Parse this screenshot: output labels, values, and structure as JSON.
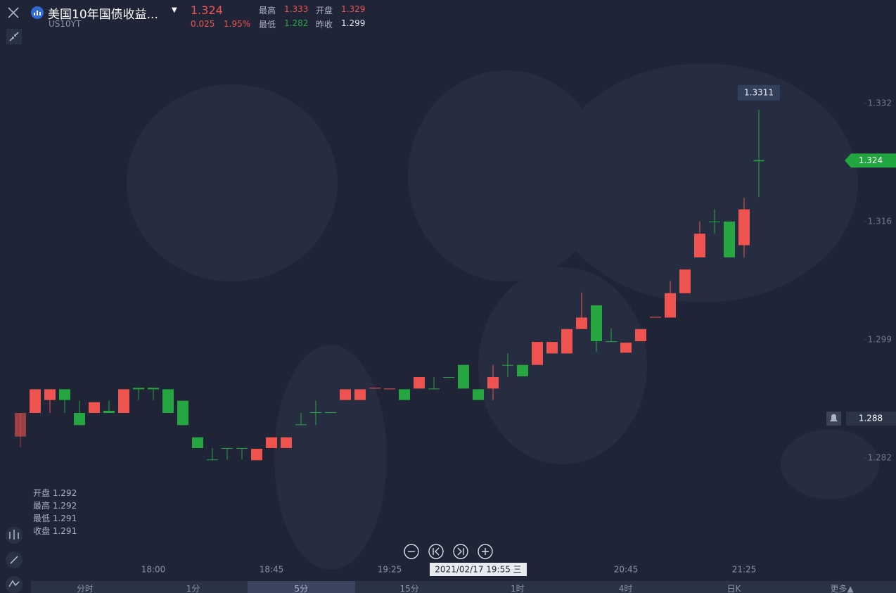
{
  "header": {
    "name": "美国10年国债收益...",
    "symbol": "US10YT",
    "price": "1.324",
    "change": "0.025",
    "change_pct": "1.95%",
    "stats": [
      {
        "label": "最高",
        "value": "1.333",
        "tone": "up"
      },
      {
        "label": "开盘",
        "value": "1.329",
        "tone": "up"
      },
      {
        "label": "最低",
        "value": "1.282",
        "tone": "down"
      },
      {
        "label": "昨收",
        "value": "1.299",
        "tone": "flat"
      }
    ]
  },
  "info": [
    {
      "label": "开盘",
      "value": "1.292"
    },
    {
      "label": "最高",
      "value": "1.292"
    },
    {
      "label": "最低",
      "value": "1.291"
    },
    {
      "label": "收盘",
      "value": "1.291"
    }
  ],
  "tabs": [
    "分时",
    "1分",
    "5分",
    "15分",
    "1时",
    "4时",
    "日K",
    "更多▲"
  ],
  "active_tab": 2,
  "chart_data": {
    "type": "candlestick",
    "up_color": "#ef5350",
    "down_color": "#26a641",
    "categories": [
      null,
      null,
      null,
      null,
      null,
      null,
      null,
      null,
      null,
      "18:00",
      null,
      null,
      null,
      null,
      null,
      null,
      null,
      "18:45",
      null,
      null,
      null,
      null,
      null,
      null,
      null,
      "19:25",
      null,
      null,
      null,
      null,
      null,
      null,
      null,
      null,
      null,
      null,
      null,
      null,
      null,
      null,
      null,
      "20:45",
      null,
      null,
      null,
      null,
      null,
      null,
      null,
      "21:25",
      null
    ],
    "open": [
      1.2855,
      1.2888,
      1.2906,
      1.2921,
      1.2888,
      1.2888,
      1.2891,
      1.2888,
      1.2923,
      1.2923,
      1.2921,
      1.2905,
      1.2854,
      1.2823,
      1.2839,
      1.2839,
      1.2822,
      1.2839,
      1.2839,
      1.2872,
      1.2889,
      1.2889,
      1.2906,
      1.2906,
      1.2922,
      1.2921,
      1.2921,
      1.2922,
      1.2922,
      1.2938,
      1.2955,
      1.2921,
      1.2922,
      1.2955,
      1.2955,
      1.2955,
      1.2971,
      1.2971,
      1.3005,
      1.3038,
      1.2988,
      1.2972,
      1.2988,
      1.3021,
      1.3021,
      1.3055,
      1.3105,
      1.3155,
      1.3155,
      1.3122,
      1.324
    ],
    "high": [
      1.2888,
      1.2921,
      1.2921,
      1.2921,
      1.2905,
      1.2903,
      1.2905,
      1.2921,
      1.2923,
      1.2923,
      1.2921,
      1.2905,
      1.2854,
      1.2839,
      1.2839,
      1.2839,
      1.2838,
      1.2854,
      1.2854,
      1.2888,
      1.2905,
      1.2889,
      1.2921,
      1.2921,
      1.2923,
      1.2922,
      1.2921,
      1.2938,
      1.2938,
      1.2938,
      1.2955,
      1.2921,
      1.2955,
      1.2971,
      1.2955,
      1.2987,
      1.2987,
      1.3005,
      1.3056,
      1.3038,
      1.3006,
      1.2986,
      1.3005,
      1.3022,
      1.3072,
      1.3088,
      1.3155,
      1.3172,
      1.3155,
      1.3188,
      1.3311
    ],
    "low": [
      1.284,
      1.2888,
      1.2888,
      1.2888,
      1.2871,
      1.2888,
      1.2888,
      1.2888,
      1.2906,
      1.2906,
      1.2888,
      1.2871,
      1.2839,
      1.2822,
      1.2823,
      1.2823,
      1.2822,
      1.2839,
      1.2839,
      1.2871,
      1.2871,
      1.2888,
      1.2906,
      1.2906,
      1.2922,
      1.2921,
      1.2906,
      1.2922,
      1.2921,
      1.2937,
      1.2922,
      1.2906,
      1.2906,
      1.2938,
      1.2939,
      1.2955,
      1.2971,
      1.2971,
      1.3005,
      1.2973,
      1.2987,
      1.2972,
      1.2988,
      1.3021,
      1.3021,
      1.3055,
      1.3105,
      1.3138,
      1.3105,
      1.3105,
      1.3189
    ],
    "close": [
      1.2888,
      1.2921,
      1.2921,
      1.2906,
      1.2871,
      1.2903,
      1.2888,
      1.2921,
      1.2921,
      1.2921,
      1.2888,
      1.2871,
      1.2839,
      1.2822,
      1.2838,
      1.2838,
      1.2838,
      1.2854,
      1.2854,
      1.2871,
      1.2888,
      1.2888,
      1.2921,
      1.2921,
      1.2923,
      1.2922,
      1.2906,
      1.2938,
      1.2921,
      1.2937,
      1.2922,
      1.2906,
      1.2938,
      1.2954,
      1.2939,
      1.2987,
      1.2987,
      1.3005,
      1.3021,
      1.2988,
      1.2987,
      1.2986,
      1.3005,
      1.3022,
      1.3055,
      1.3088,
      1.3138,
      1.3154,
      1.3105,
      1.3172,
      1.3239
    ],
    "ylim": [
      1.2679,
      1.3464
    ],
    "yticks": [
      1.332,
      {
        "value": 1.3155,
        "label": "1.316"
      },
      1.299,
      {
        "value": 1.2825,
        "label": "1.282"
      }
    ],
    "last_price": 1.324,
    "alert_price": 1.288,
    "hover_high": 1.3311,
    "crosshair": {
      "index": 31,
      "label": "2021/02/17 19:55 三"
    }
  }
}
